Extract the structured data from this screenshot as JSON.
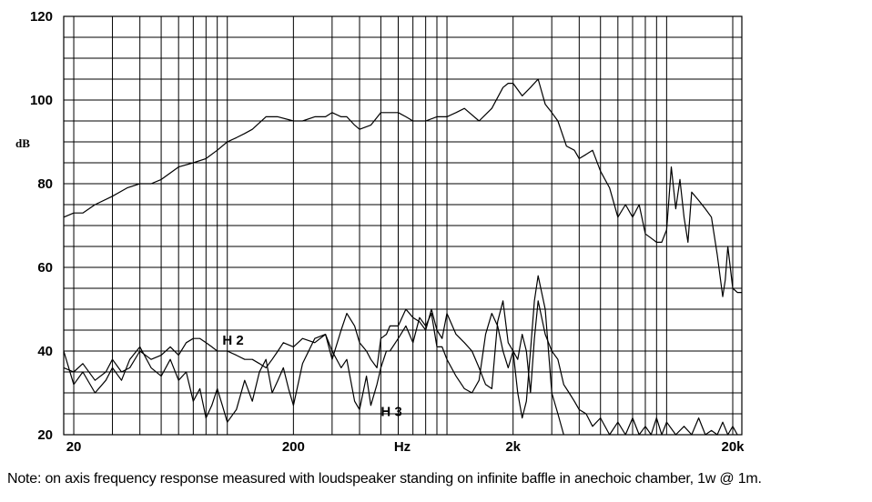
{
  "chart_data": {
    "type": "line",
    "ylabel": "dB",
    "xlabel": "Hz",
    "x_scale": "log",
    "xlim": [
      18,
      22000
    ],
    "ylim": [
      20,
      120
    ],
    "grid": true,
    "x_ticks": [
      {
        "value": 20,
        "label": "20"
      },
      {
        "value": 200,
        "label": "200"
      },
      {
        "value": 2000,
        "label": "2k"
      },
      {
        "value": 20000,
        "label": "20k"
      }
    ],
    "y_ticks": [
      20,
      40,
      60,
      80,
      100,
      120
    ],
    "annotations": [
      {
        "text": "H 2",
        "x": 95,
        "y": 41.5
      },
      {
        "text": "H 3",
        "x": 500,
        "y": 24.5
      }
    ],
    "series": [
      {
        "name": "Frequency response",
        "x": [
          18,
          20,
          22,
          25,
          30,
          35,
          40,
          45,
          50,
          60,
          70,
          80,
          90,
          100,
          110,
          120,
          130,
          150,
          170,
          200,
          220,
          250,
          280,
          300,
          330,
          350,
          380,
          400,
          450,
          500,
          550,
          600,
          650,
          700,
          750,
          800,
          900,
          1000,
          1100,
          1200,
          1400,
          1600,
          1800,
          1900,
          2000,
          2200,
          2400,
          2600,
          2800,
          3000,
          3200,
          3500,
          3800,
          4000,
          4300,
          4600,
          5000,
          5500,
          6000,
          6500,
          7000,
          7500,
          8000,
          8500,
          9000,
          9500,
          10000,
          10500,
          11000,
          11500,
          12000,
          12500,
          13000,
          14000,
          15000,
          16000,
          17000,
          17500,
          18000,
          18500,
          19000,
          20000,
          21000,
          22000
        ],
        "y": [
          72,
          73,
          73,
          75,
          77,
          79,
          80,
          80,
          81,
          84,
          85,
          86,
          88,
          90,
          91,
          92,
          93,
          96,
          96,
          95,
          95,
          96,
          96,
          97,
          96,
          96,
          94,
          93,
          94,
          97,
          97,
          97,
          96,
          95,
          95,
          95,
          96,
          96,
          97,
          98,
          95,
          98,
          103,
          104,
          104,
          101,
          103,
          105,
          99,
          97,
          95,
          89,
          88,
          86,
          87,
          88,
          83,
          79,
          72,
          75,
          72,
          75,
          68,
          67,
          66,
          66,
          69,
          84,
          74,
          81,
          72,
          66,
          78,
          76,
          74,
          72,
          63,
          58,
          53,
          57,
          65,
          55,
          54,
          54
        ]
      },
      {
        "name": "H2",
        "x": [
          18,
          20,
          22,
          25,
          28,
          30,
          33,
          36,
          40,
          45,
          50,
          55,
          60,
          65,
          70,
          75,
          80,
          85,
          90,
          95,
          100,
          110,
          120,
          130,
          140,
          150,
          160,
          170,
          180,
          200,
          220,
          250,
          280,
          300,
          330,
          350,
          380,
          400,
          430,
          450,
          480,
          500,
          530,
          550,
          600,
          650,
          700,
          750,
          800,
          850,
          900,
          950,
          1000,
          1100,
          1200,
          1300,
          1400,
          1500,
          1600,
          1700,
          1800,
          1900,
          2000,
          2100,
          2200,
          2300,
          2400,
          2500,
          2600,
          2800,
          3000,
          3200,
          3400
        ],
        "y": [
          36,
          35,
          37,
          33,
          35,
          38,
          35,
          36,
          40,
          38,
          39,
          41,
          39,
          42,
          43,
          43,
          42,
          41,
          40,
          40,
          40,
          39,
          38,
          38,
          37,
          36,
          38,
          40,
          42,
          41,
          43,
          42,
          44,
          38,
          45,
          49,
          46,
          42,
          40,
          38,
          36,
          43,
          44,
          46,
          46,
          50,
          48,
          47,
          45,
          50,
          45,
          43,
          49,
          44,
          42,
          40,
          36,
          32,
          31,
          47,
          52,
          42,
          40,
          30,
          24,
          28,
          40,
          52,
          58,
          50,
          30,
          25,
          20
        ]
      },
      {
        "name": "H3",
        "x": [
          18,
          20,
          22,
          25,
          28,
          30,
          33,
          36,
          40,
          45,
          50,
          55,
          60,
          65,
          70,
          75,
          80,
          85,
          90,
          95,
          100,
          110,
          120,
          130,
          140,
          150,
          160,
          170,
          180,
          190,
          200,
          220,
          250,
          280,
          300,
          330,
          350,
          380,
          400,
          430,
          450,
          480,
          500,
          530,
          550,
          600,
          650,
          700,
          750,
          800,
          850,
          900,
          950,
          1000,
          1100,
          1200,
          1300,
          1400,
          1500,
          1600,
          1700,
          1800,
          1900,
          2000,
          2100,
          2200,
          2300,
          2400,
          2500,
          2600,
          2800,
          3000,
          3200,
          3400,
          3600,
          3800,
          4000,
          4300,
          4600,
          5000,
          5500,
          6000,
          6500,
          7000,
          7500,
          8000,
          8500,
          9000,
          9500,
          10000,
          11000,
          12000,
          13000,
          14000,
          15000,
          16000,
          17000,
          18000,
          19000,
          20000,
          21000
        ],
        "y": [
          40,
          32,
          35,
          30,
          33,
          36,
          33,
          38,
          41,
          36,
          34,
          38,
          33,
          35,
          28,
          31,
          24,
          27,
          31,
          27,
          23,
          26,
          33,
          28,
          35,
          38,
          30,
          33,
          36,
          31,
          27,
          37,
          43,
          44,
          40,
          36,
          38,
          28,
          26,
          34,
          27,
          32,
          36,
          40,
          40,
          43,
          46,
          42,
          48,
          46,
          49,
          41,
          41,
          38,
          34,
          31,
          30,
          33,
          44,
          49,
          46,
          40,
          36,
          40,
          38,
          44,
          40,
          30,
          43,
          52,
          44,
          40,
          38,
          32,
          30,
          28,
          26,
          25,
          22,
          24,
          20,
          23,
          20,
          24,
          20,
          22,
          20,
          24,
          20,
          23,
          20,
          22,
          20,
          24,
          20,
          21,
          20,
          23,
          20,
          22,
          20
        ]
      }
    ]
  },
  "footer": {
    "note": "Note: on axis frequency response measured with loudspeaker standing on infinite baffle in anechoic chamber, 1w @ 1m."
  }
}
